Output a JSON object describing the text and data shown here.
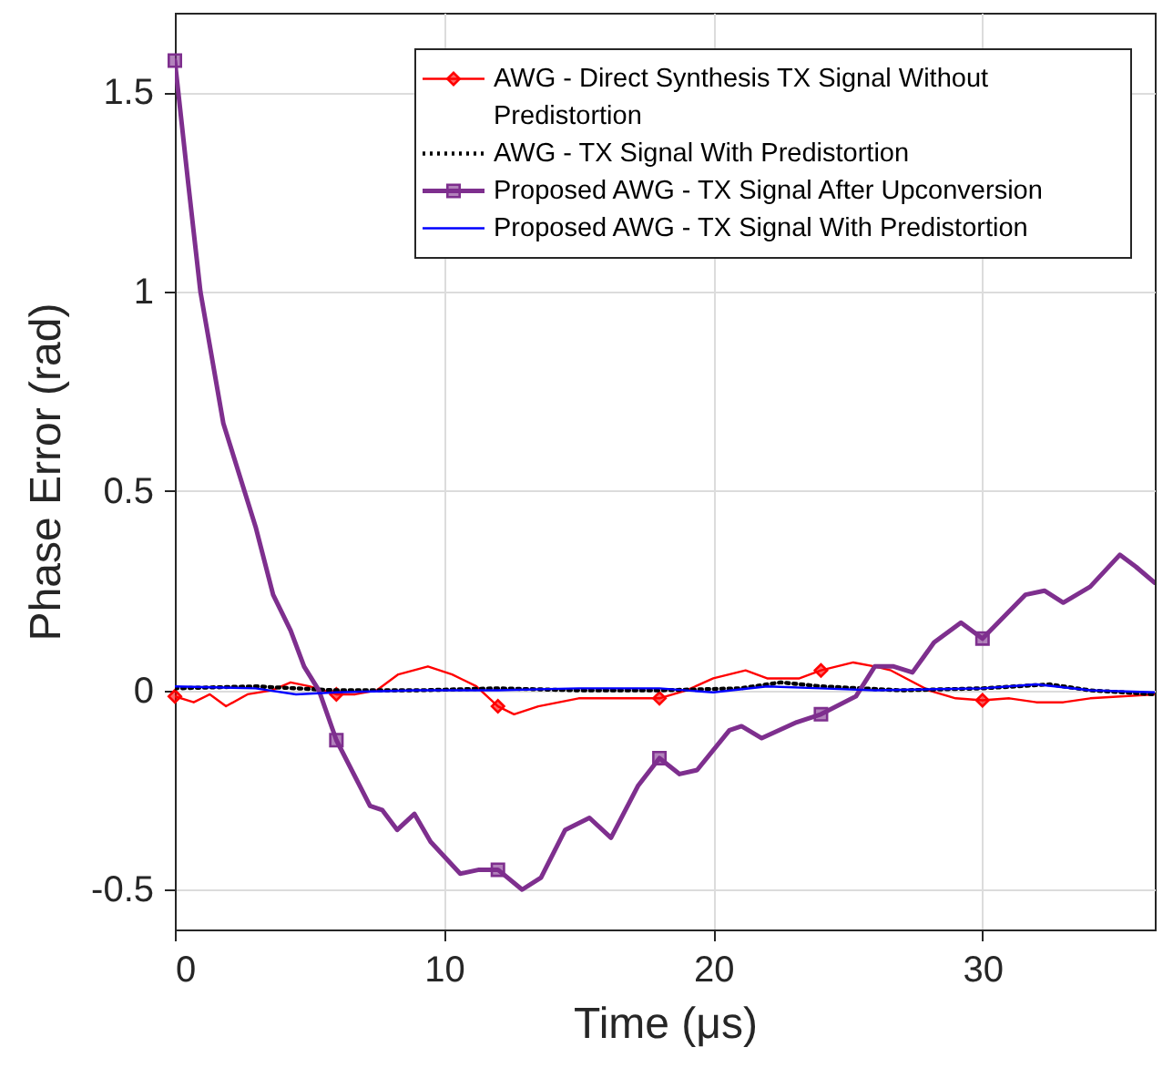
{
  "chart_data": {
    "type": "line",
    "xlabel": "Time (μs)",
    "ylabel": "Phase Error (rad)",
    "xlim": [
      0,
      36.4
    ],
    "xticks": [
      0,
      10,
      20,
      30
    ],
    "ylim": [
      -0.6,
      1.7
    ],
    "yticks": [
      -0.5,
      0,
      0.5,
      1,
      1.5
    ],
    "grid": true,
    "legend": "top right",
    "series": [
      {
        "name": "AWG - Direct Synthesis TX Signal Without Predistortion",
        "color": "#ff0000",
        "line_style": "solid",
        "x": [
          0,
          0.7,
          1.3,
          1.9,
          2.7,
          3.6,
          4.3,
          5,
          6,
          6.7,
          7.5,
          8.3,
          9.4,
          10.3,
          11.2,
          12,
          12.6,
          13.5,
          15,
          16.5,
          18,
          19,
          20,
          21.2,
          22,
          23.2,
          24,
          25.2,
          26,
          26.6,
          28,
          29,
          30,
          31,
          32,
          33,
          34,
          36.4
        ],
        "values": [
          -0.015,
          -0.03,
          -0.01,
          -0.04,
          -0.01,
          0.0,
          0.02,
          0.01,
          -0.01,
          -0.01,
          0.0,
          0.04,
          0.06,
          0.04,
          0.01,
          -0.04,
          -0.06,
          -0.04,
          -0.02,
          -0.02,
          -0.02,
          0.0,
          0.03,
          0.05,
          0.03,
          0.03,
          0.05,
          0.07,
          0.06,
          0.05,
          0.0,
          -0.02,
          -0.025,
          -0.02,
          -0.03,
          -0.03,
          -0.02,
          -0.01
        ]
      },
      {
        "type": "scatter",
        "color": "#ff0000",
        "marker": "diamond",
        "x": [
          0,
          6,
          12,
          18,
          24,
          30
        ],
        "values": [
          -0.015,
          -0.01,
          -0.04,
          -0.02,
          0.05,
          -0.025
        ]
      },
      {
        "name": "AWG - TX Signal With Predistortion",
        "color": "#000000",
        "line_style": "dotted",
        "x": [
          0,
          3,
          6,
          9,
          12,
          15,
          18,
          21,
          22.5,
          24,
          27,
          30,
          32.5,
          34,
          36.4
        ],
        "values": [
          0.005,
          0.01,
          0.0,
          0.0,
          0.005,
          0.0,
          0.0,
          0.005,
          0.02,
          0.01,
          0.0,
          0.005,
          0.015,
          0.0,
          -0.01
        ]
      },
      {
        "name": "Proposed AWG - TX Signal After Upconversion",
        "color": "#7e2f8e",
        "line_style": "solid",
        "x": [
          0,
          0.5,
          0.95,
          1.8,
          3,
          3.65,
          4.3,
          4.8,
          5.35,
          6,
          7.25,
          7.7,
          8.26,
          8.9,
          9.5,
          10.6,
          11.3,
          12,
          12.9,
          13.6,
          14.5,
          15.4,
          16.2,
          17.2,
          18,
          18.75,
          19.4,
          20.6,
          21.05,
          21.8,
          23.1,
          24,
          25.3,
          26,
          26.7,
          27.4,
          28.2,
          29.2,
          30,
          31.6,
          32.3,
          33,
          34,
          35.1,
          35.7,
          36.4
        ],
        "values": [
          1.58,
          1.27,
          1.0,
          0.67,
          0.41,
          0.24,
          0.15,
          0.06,
          0.0,
          -0.125,
          -0.29,
          -0.3,
          -0.35,
          -0.31,
          -0.38,
          -0.46,
          -0.45,
          -0.45,
          -0.5,
          -0.47,
          -0.35,
          -0.32,
          -0.37,
          -0.24,
          -0.17,
          -0.21,
          -0.2,
          -0.1,
          -0.09,
          -0.12,
          -0.08,
          -0.06,
          -0.015,
          0.06,
          0.06,
          0.045,
          0.12,
          0.17,
          0.13,
          0.24,
          0.25,
          0.22,
          0.26,
          0.34,
          0.31,
          0.27
        ]
      },
      {
        "type": "scatter",
        "color": "#7e2f8e",
        "marker": "square",
        "x": [
          0,
          6,
          12,
          18,
          24,
          30
        ],
        "values": [
          1.58,
          -0.125,
          -0.45,
          -0.17,
          -0.06,
          0.13
        ]
      },
      {
        "name": "Proposed AWG - TX Signal With Predistortion",
        "color": "#0000ff",
        "line_style": "solid",
        "x": [
          0,
          3,
          4.5,
          6,
          9,
          12,
          15,
          18,
          20,
          22,
          24,
          26,
          30,
          32,
          34,
          36.4
        ],
        "values": [
          0.01,
          0.005,
          -0.01,
          -0.005,
          0.0,
          0.0,
          0.005,
          0.005,
          -0.005,
          0.01,
          0.005,
          0.0,
          0.005,
          0.015,
          0.0,
          -0.005
        ]
      }
    ]
  }
}
